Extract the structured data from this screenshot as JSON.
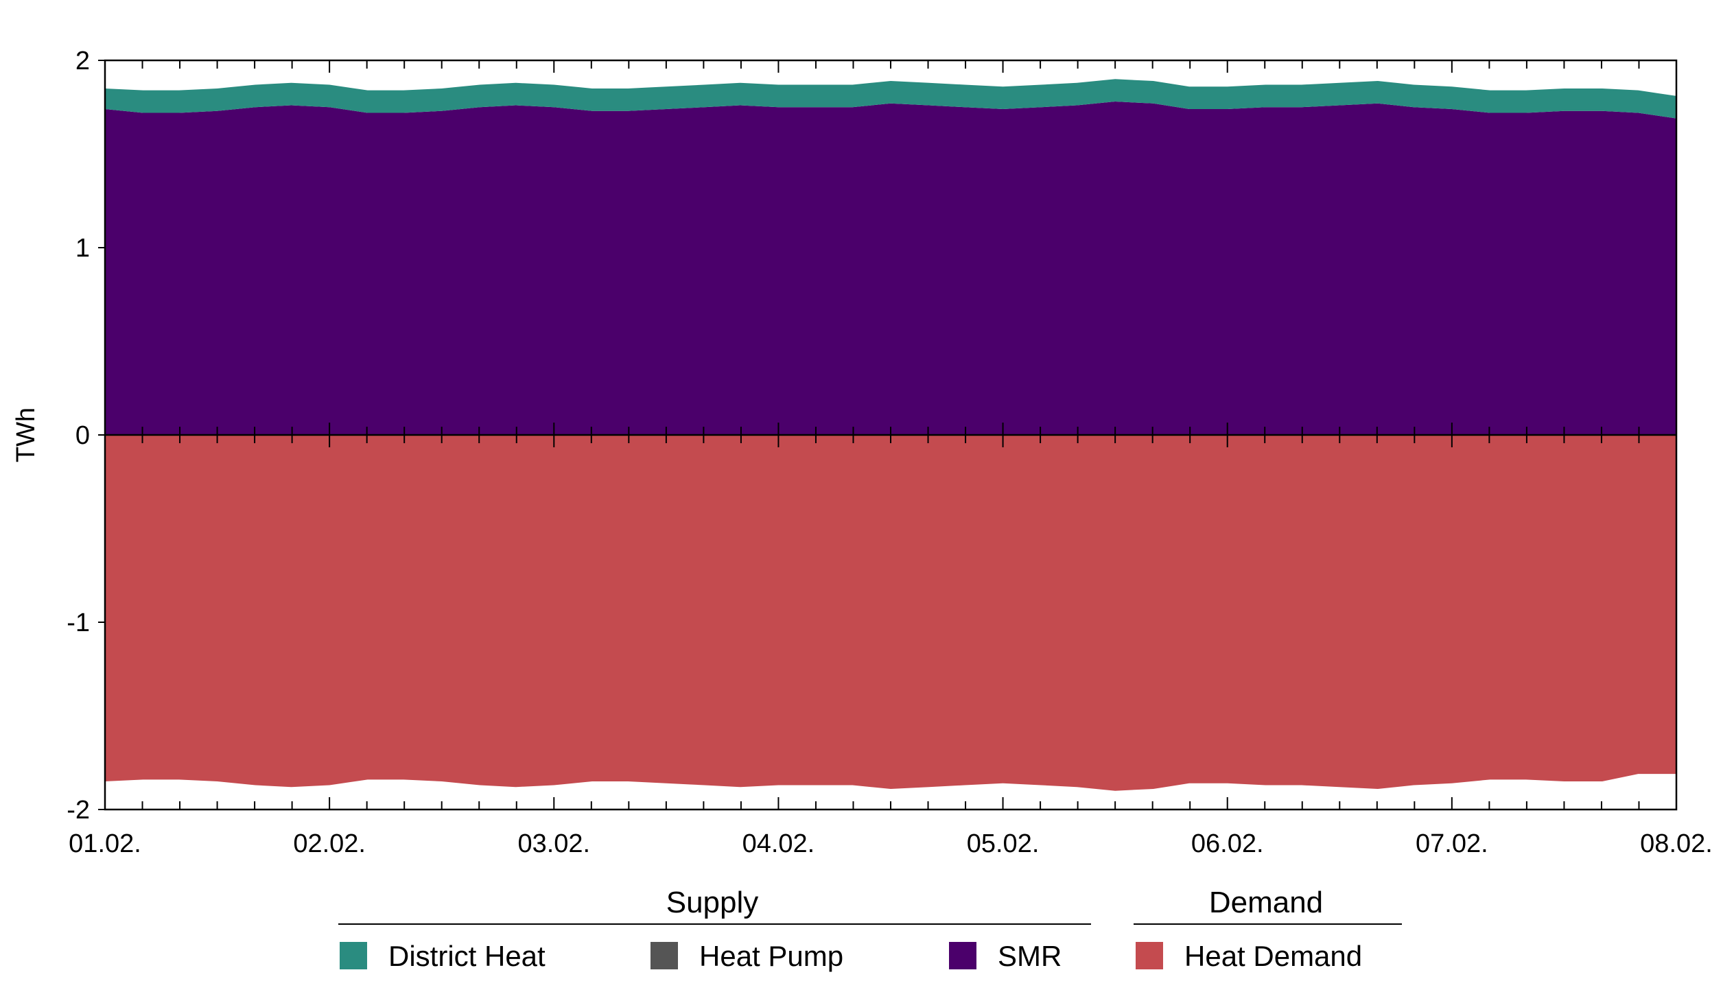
{
  "chart_data": {
    "type": "area",
    "ylabel": "TWh",
    "ylim": [
      -2,
      2
    ],
    "yticks": [
      "2",
      "1",
      "0",
      "-1",
      "-2"
    ],
    "xlim": [
      "01.02.",
      "08.02."
    ],
    "xticks": [
      "01.02.",
      "02.02.",
      "03.02.",
      "04.02.",
      "05.02.",
      "06.02.",
      "07.02.",
      "08.02."
    ],
    "x_minor_ticks_per_day": 6,
    "legend": {
      "placement": "bottom",
      "groups": [
        {
          "title": "Supply",
          "items": [
            {
              "label": "District Heat",
              "color": "#2a8c80"
            },
            {
              "label": "Heat Pump",
              "color": "#555555"
            },
            {
              "label": "SMR",
              "color": "#4b006b"
            }
          ]
        },
        {
          "title": "Demand",
          "items": [
            {
              "label": "Heat Demand",
              "color": "#c44b4f"
            }
          ]
        }
      ]
    },
    "x_days": [
      0.0,
      0.17,
      0.33,
      0.5,
      0.67,
      0.83,
      1.0,
      1.17,
      1.33,
      1.5,
      1.67,
      1.83,
      2.0,
      2.17,
      2.33,
      2.5,
      2.67,
      2.83,
      3.0,
      3.17,
      3.33,
      3.5,
      3.67,
      3.83,
      4.0,
      4.17,
      4.33,
      4.5,
      4.67,
      4.83,
      5.0,
      5.17,
      5.33,
      5.5,
      5.67,
      5.83,
      6.0,
      6.17,
      6.33,
      6.5,
      6.67,
      6.83,
      7.0
    ],
    "series": [
      {
        "name": "SMR",
        "color": "#4b006b",
        "values": [
          1.74,
          1.72,
          1.72,
          1.73,
          1.75,
          1.76,
          1.75,
          1.72,
          1.72,
          1.73,
          1.75,
          1.76,
          1.75,
          1.73,
          1.73,
          1.74,
          1.75,
          1.76,
          1.75,
          1.75,
          1.75,
          1.77,
          1.76,
          1.75,
          1.74,
          1.75,
          1.76,
          1.78,
          1.77,
          1.74,
          1.74,
          1.75,
          1.75,
          1.76,
          1.77,
          1.75,
          1.74,
          1.72,
          1.72,
          1.73,
          1.73,
          1.72,
          1.69
        ]
      },
      {
        "name": "Heat Pump",
        "color": "#555555",
        "values": [
          0,
          0,
          0,
          0,
          0,
          0,
          0,
          0,
          0,
          0,
          0,
          0,
          0,
          0,
          0,
          0,
          0,
          0,
          0,
          0,
          0,
          0,
          0,
          0,
          0,
          0,
          0,
          0,
          0,
          0,
          0,
          0,
          0,
          0,
          0,
          0,
          0,
          0,
          0,
          0,
          0,
          0,
          0
        ]
      },
      {
        "name": "District Heat",
        "color": "#2a8c80",
        "values": [
          0.11,
          0.12,
          0.12,
          0.12,
          0.12,
          0.12,
          0.12,
          0.12,
          0.12,
          0.12,
          0.12,
          0.12,
          0.12,
          0.12,
          0.12,
          0.12,
          0.12,
          0.12,
          0.12,
          0.12,
          0.12,
          0.12,
          0.12,
          0.12,
          0.12,
          0.12,
          0.12,
          0.12,
          0.12,
          0.12,
          0.12,
          0.12,
          0.12,
          0.12,
          0.12,
          0.12,
          0.12,
          0.12,
          0.12,
          0.12,
          0.12,
          0.12,
          0.12
        ]
      },
      {
        "name": "Heat Demand",
        "color": "#c44b4f",
        "values": [
          -1.85,
          -1.84,
          -1.84,
          -1.85,
          -1.87,
          -1.88,
          -1.87,
          -1.84,
          -1.84,
          -1.85,
          -1.87,
          -1.88,
          -1.87,
          -1.85,
          -1.85,
          -1.86,
          -1.87,
          -1.88,
          -1.87,
          -1.87,
          -1.87,
          -1.89,
          -1.88,
          -1.87,
          -1.86,
          -1.87,
          -1.88,
          -1.9,
          -1.89,
          -1.86,
          -1.86,
          -1.87,
          -1.87,
          -1.88,
          -1.89,
          -1.87,
          -1.86,
          -1.84,
          -1.84,
          -1.85,
          -1.85,
          -1.81,
          -1.81
        ]
      }
    ]
  }
}
